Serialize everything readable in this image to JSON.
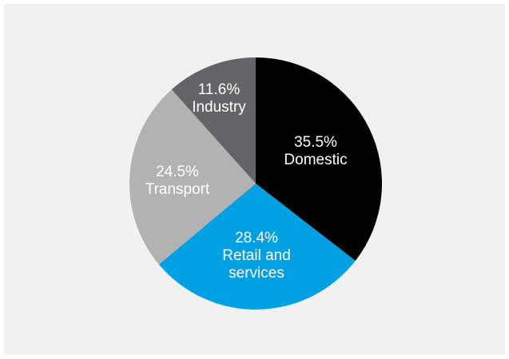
{
  "chart_data": {
    "type": "pie",
    "title": "",
    "slices": [
      {
        "category": "Domestic",
        "label_lines": [
          "35.5%",
          "Domestic"
        ],
        "value": 35.5,
        "color": "#000000"
      },
      {
        "category": "Retail and services",
        "label_lines": [
          "28.4%",
          "Retail and",
          "services"
        ],
        "value": 28.4,
        "color": "#00a0e3"
      },
      {
        "category": "Transport",
        "label_lines": [
          "24.5%",
          "Transport"
        ],
        "value": 24.5,
        "color": "#b2b2b3"
      },
      {
        "category": "Industry",
        "label_lines": [
          "11.6%",
          "Industry"
        ],
        "value": 11.6,
        "color": "#646466"
      }
    ],
    "start": "12 o'clock",
    "direction": "clockwise",
    "legend": "none",
    "label_color": "#ffffff",
    "background": "#f1f1f2"
  }
}
